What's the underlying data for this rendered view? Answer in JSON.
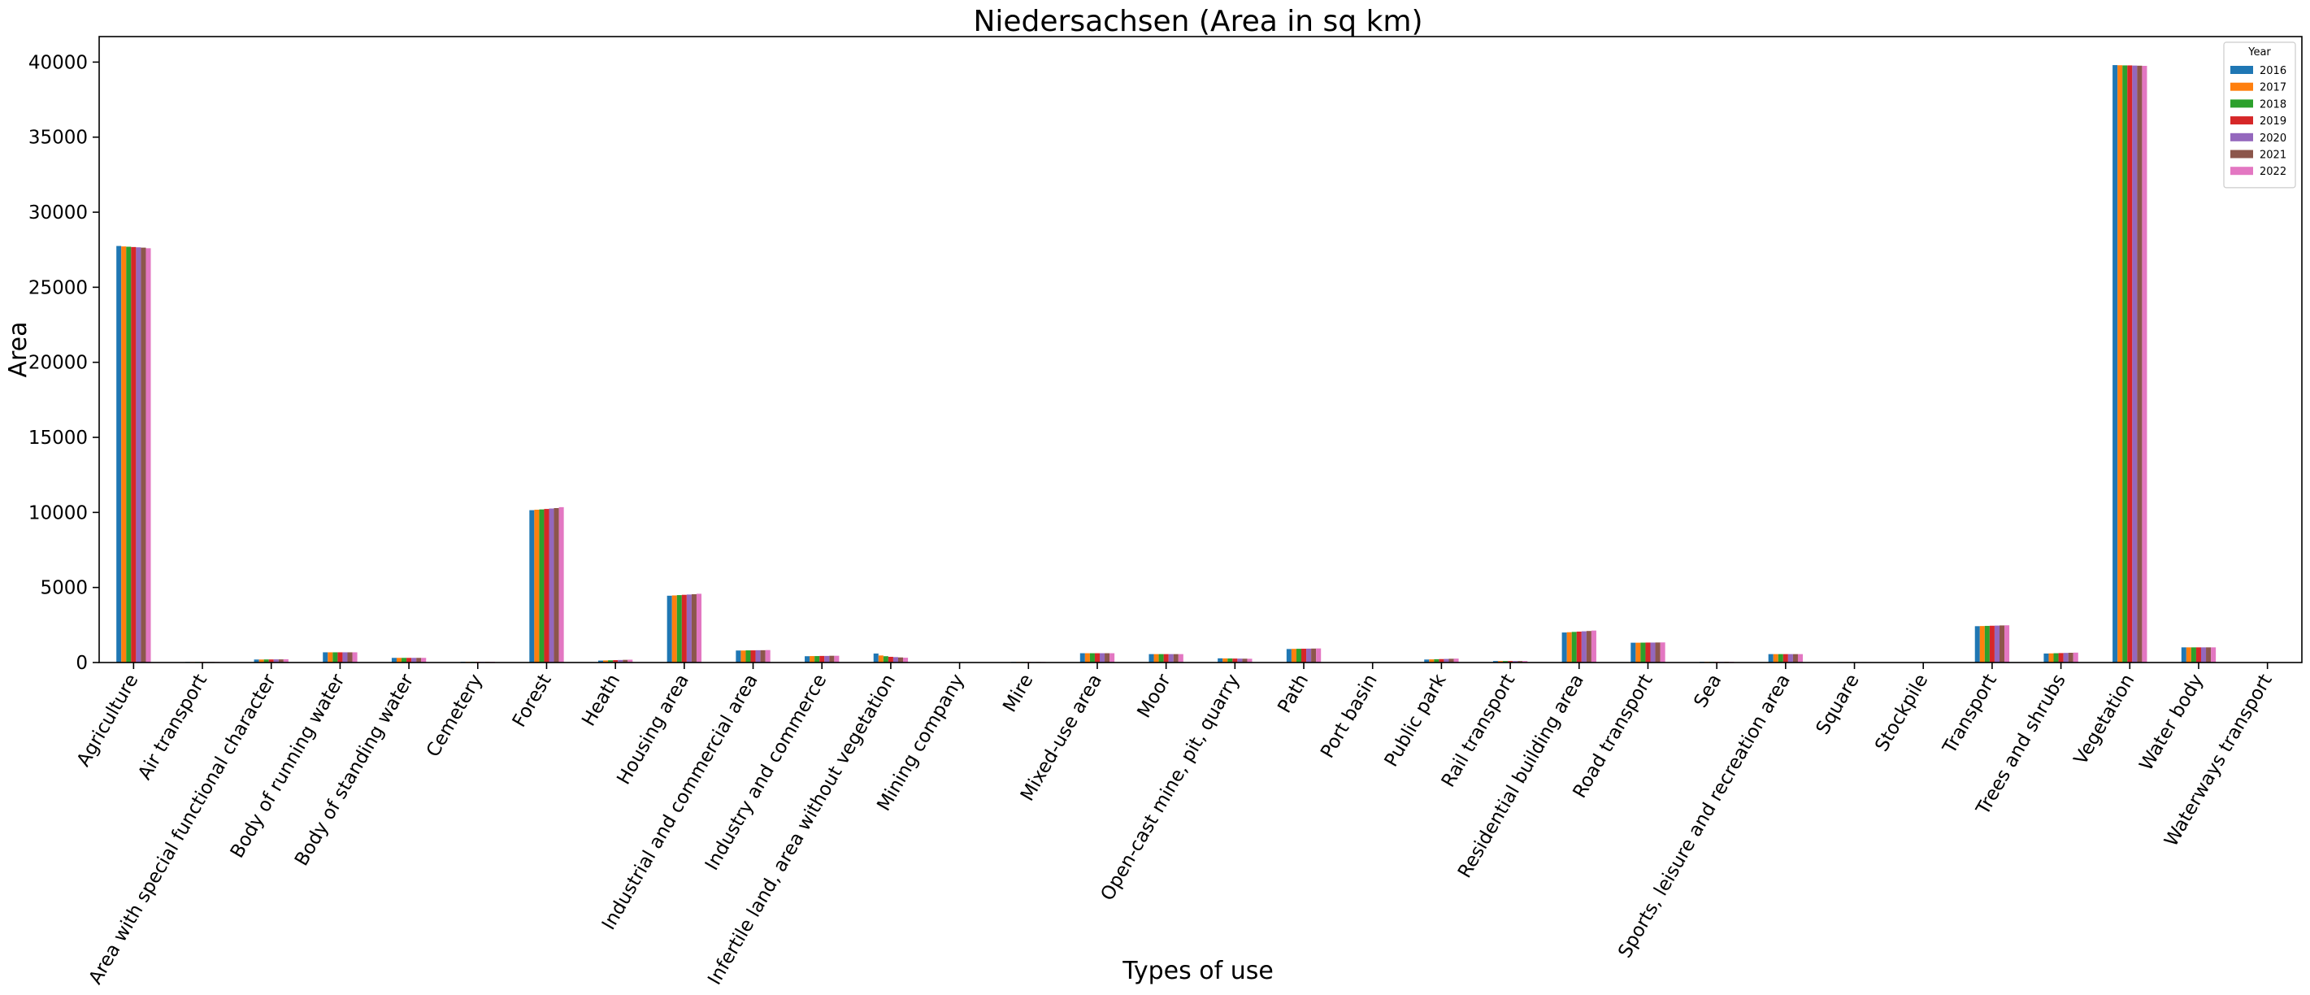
{
  "chart_data": {
    "type": "bar",
    "title": "Niedersachsen (Area in sq km)",
    "xlabel": "Types of use",
    "ylabel": "Area",
    "ylim": [
      0,
      41700
    ],
    "yticks": [
      0,
      5000,
      10000,
      15000,
      20000,
      25000,
      30000,
      35000,
      40000
    ],
    "grid": false,
    "legend": {
      "title": "Year",
      "placement": "top-right"
    },
    "categories": [
      "Agriculture",
      "Air transport",
      "Area with special functional character",
      "Body of running water",
      "Body of standing water",
      "Cemetery",
      "Forest",
      "Heath",
      "Housing area",
      "Industrial and commercial area",
      "Industry and commerce",
      "Infertile land, area without vegetation",
      "Mining company",
      "Mire",
      "Mixed-use area",
      "Moor",
      "Open-cast mine, pit, quarry",
      "Path",
      "Port basin",
      "Public park",
      "Rail transport",
      "Residential building area",
      "Road transport",
      "Sea",
      "Sports, leisure and recreation area",
      "Square",
      "Stockpile",
      "Transport",
      "Trees and shrubs",
      "Vegetation",
      "Water body",
      "Waterways transport"
    ],
    "series": [
      {
        "name": "2016",
        "color": "#1f77b4",
        "values": [
          27750,
          40,
          200,
          680,
          310,
          50,
          10150,
          130,
          4450,
          800,
          420,
          600,
          0,
          40,
          620,
          560,
          280,
          900,
          10,
          200,
          100,
          2000,
          1320,
          50,
          560,
          30,
          5,
          2420,
          600,
          39800,
          1010,
          10
        ]
      },
      {
        "name": "2017",
        "color": "#ff7f0e",
        "values": [
          27720,
          40,
          200,
          680,
          310,
          50,
          10180,
          140,
          4470,
          800,
          430,
          470,
          0,
          40,
          620,
          560,
          275,
          910,
          10,
          210,
          100,
          2020,
          1320,
          50,
          560,
          30,
          5,
          2430,
          610,
          39790,
          1010,
          10
        ]
      },
      {
        "name": "2018",
        "color": "#2ca02c",
        "values": [
          27700,
          40,
          205,
          680,
          310,
          50,
          10200,
          150,
          4490,
          810,
          430,
          420,
          0,
          40,
          620,
          560,
          270,
          915,
          10,
          220,
          100,
          2040,
          1325,
          50,
          560,
          30,
          5,
          2440,
          620,
          39780,
          1010,
          10
        ]
      },
      {
        "name": "2019",
        "color": "#d62728",
        "values": [
          27680,
          40,
          205,
          680,
          310,
          50,
          10230,
          160,
          4510,
          810,
          440,
          380,
          0,
          40,
          620,
          560,
          265,
          920,
          10,
          230,
          100,
          2060,
          1330,
          50,
          560,
          30,
          5,
          2450,
          630,
          39780,
          1010,
          10
        ]
      },
      {
        "name": "2020",
        "color": "#9467bd",
        "values": [
          27660,
          40,
          210,
          680,
          310,
          50,
          10260,
          170,
          4530,
          820,
          440,
          360,
          0,
          40,
          620,
          560,
          260,
          925,
          10,
          240,
          100,
          2080,
          1330,
          50,
          560,
          30,
          5,
          2460,
          640,
          39770,
          1010,
          10
        ]
      },
      {
        "name": "2021",
        "color": "#8c564b",
        "values": [
          27640,
          40,
          210,
          680,
          310,
          50,
          10290,
          180,
          4550,
          820,
          450,
          340,
          0,
          40,
          620,
          560,
          255,
          930,
          10,
          250,
          100,
          2100,
          1335,
          50,
          560,
          30,
          5,
          2470,
          650,
          39760,
          1010,
          10
        ]
      },
      {
        "name": "2022",
        "color": "#e377c2",
        "values": [
          27600,
          40,
          215,
          680,
          310,
          50,
          10350,
          190,
          4580,
          830,
          450,
          320,
          0,
          40,
          620,
          560,
          250,
          940,
          10,
          260,
          100,
          2130,
          1340,
          50,
          560,
          30,
          5,
          2480,
          660,
          39750,
          1010,
          10
        ]
      }
    ]
  }
}
